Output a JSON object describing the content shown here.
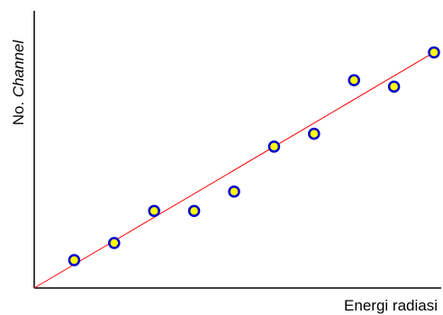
{
  "chart_data": {
    "type": "scatter",
    "title": "",
    "xlabel": "Energi radiasi",
    "ylabel_prefix": "No. ",
    "ylabel_emphasis": "Channel",
    "xlim": [
      0,
      11
    ],
    "ylim": [
      0,
      11
    ],
    "ticks": "none",
    "grid": false,
    "series": [
      {
        "x": [
          1,
          2,
          3,
          4,
          5,
          6,
          7,
          8,
          9,
          10
        ],
        "y": [
          1.3,
          2.1,
          3.6,
          3.6,
          4.5,
          6.6,
          7.2,
          9.7,
          9.4,
          11.0
        ]
      }
    ],
    "fit_line": {
      "x": [
        0,
        10
      ],
      "y": [
        0,
        11.0
      ]
    },
    "colors": {
      "marker_fill": "#ffff00",
      "marker_stroke": "#0000cc",
      "fit_line": "#ff0000",
      "axes": "#000000"
    }
  }
}
